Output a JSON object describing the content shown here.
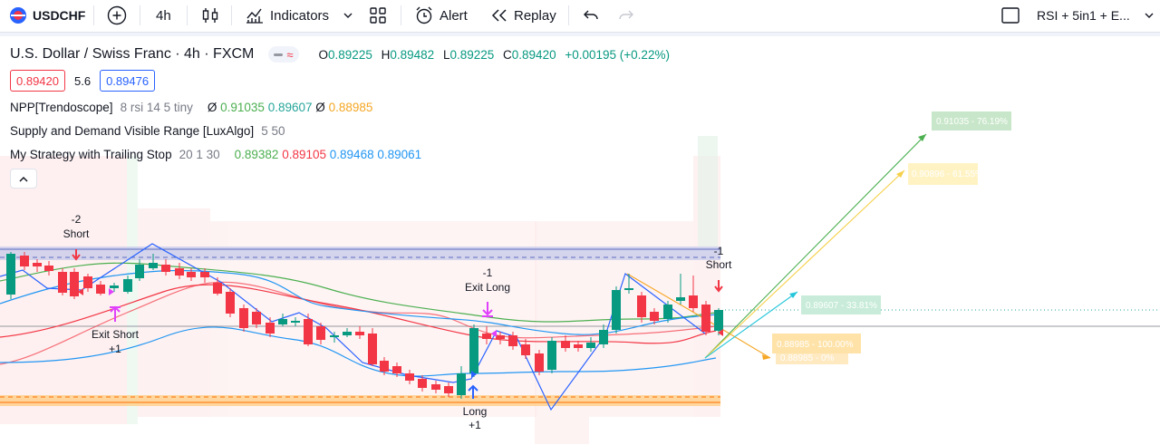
{
  "toolbar": {
    "symbol": "USDCHF",
    "add_symbol_icon": "plus-circle-icon",
    "interval": "4h",
    "chart_type_icon": "candles-icon",
    "indicators_label": "Indicators",
    "templates_icon": "grid-icon",
    "alert_label": "Alert",
    "replay_label": "Replay",
    "undo_icon": "undo-icon",
    "redo_icon": "redo-icon",
    "layout_name": "RSI + 5in1 + E..."
  },
  "legend": {
    "title": "U.S. Dollar / Swiss Franc · 4h · FXCM",
    "ohlc": [
      {
        "key": "O",
        "value": "0.89225"
      },
      {
        "key": "H",
        "value": "0.89482"
      },
      {
        "key": "L",
        "value": "0.89225"
      },
      {
        "key": "C",
        "value": "0.89420"
      }
    ],
    "change": "+0.00195 (+0.22%)",
    "sell_price": "0.89420",
    "spread": "5.6",
    "buy_price": "0.89476",
    "indicators": [
      {
        "name": "NPP[Trendoscope]",
        "params": "8 rsi 14 5 tiny",
        "values": [
          {
            "prefix": "Ø",
            "text": "0.91035",
            "color": "#4caf50"
          },
          {
            "prefix": "",
            "text": "0.89607",
            "color": "#26a69a"
          },
          {
            "prefix": "Ø",
            "text": "0.88985",
            "color": "#f5a623"
          }
        ]
      },
      {
        "name": "Supply and Demand Visible Range [LuxAlgo]",
        "params": "5 50",
        "values": []
      },
      {
        "name": "My Strategy with Trailing Stop",
        "params": "20 1 30",
        "values": [
          {
            "prefix": "",
            "text": "0.89382",
            "color": "#4caf50"
          },
          {
            "prefix": "",
            "text": "0.89105",
            "color": "#f23645"
          },
          {
            "prefix": "",
            "text": "0.89468",
            "color": "#2196f3"
          },
          {
            "prefix": "",
            "text": "0.89061",
            "color": "#2196f3"
          }
        ]
      }
    ]
  },
  "signals": {
    "short_first_count": "-2",
    "short_first_label": "Short",
    "exit_short_label": "Exit Short",
    "exit_short_count": "+1",
    "exit_long_count": "-1",
    "exit_long_label": "Exit Long",
    "long_label": "Long",
    "long_count": "+1",
    "short_last_count": "-1",
    "short_last_label": "Short"
  },
  "targets": [
    {
      "text": "0.91035 - 76.19%",
      "bg": "#c8e6c9",
      "fg": "#ffffff"
    },
    {
      "text": "0.90896 - 61.55%",
      "bg": "#fff3c4",
      "fg": "#ffffff"
    },
    {
      "text": "0.89607 - 33.81%",
      "bg": "#c8ecd9",
      "fg": "#ffffff"
    },
    {
      "text": "0.88985 - 100.00%",
      "bg": "#ffe2a8",
      "fg": "#ffffff"
    },
    {
      "text": "0.88985 - 0%",
      "bg": "#ffe9c0",
      "fg": "#ffffff"
    }
  ],
  "colors": {
    "up": "#089981",
    "down": "#f23645",
    "supply": "#c5cae9",
    "demand": "#ffcc80",
    "zigzag": "#2962ff"
  }
}
